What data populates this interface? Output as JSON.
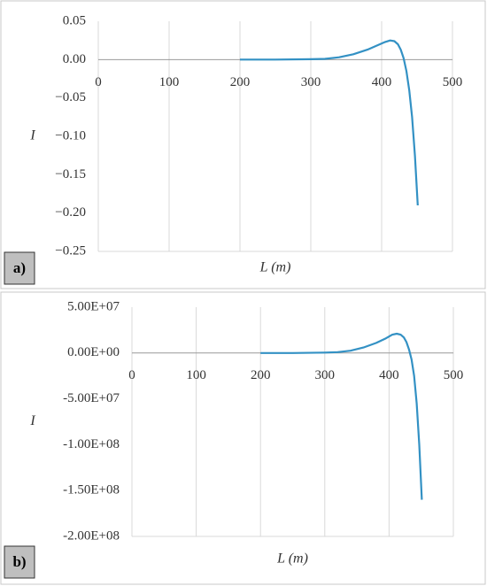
{
  "chart_data": [
    {
      "type": "line",
      "panel_label": "a)",
      "x_label": "L (m)",
      "y_label": "I",
      "color": "#3391c4",
      "grid": true,
      "x": [
        200,
        250,
        300,
        320,
        340,
        360,
        380,
        395,
        405,
        412,
        418,
        423,
        427,
        431,
        435,
        439,
        443,
        447,
        451
      ],
      "values": [
        0,
        0,
        0.0005,
        0.001,
        0.003,
        0.007,
        0.013,
        0.019,
        0.023,
        0.025,
        0.024,
        0.02,
        0.013,
        0.002,
        -0.015,
        -0.04,
        -0.075,
        -0.125,
        -0.19
      ],
      "xlim": [
        0,
        500
      ],
      "xticks": [
        0,
        100,
        200,
        300,
        400,
        500
      ],
      "ylim": [
        -0.25,
        0.05
      ],
      "yticks": [
        {
          "value": 0.05,
          "label": "0.05"
        },
        {
          "value": 0,
          "label": "0.00"
        },
        {
          "value": -0.05,
          "label": "−0.05"
        },
        {
          "value": -0.1,
          "label": "−0.10"
        },
        {
          "value": -0.15,
          "label": "−0.15"
        },
        {
          "value": -0.2,
          "label": "−0.20"
        },
        {
          "value": -0.25,
          "label": "−0.25"
        }
      ]
    },
    {
      "type": "line",
      "panel_label": "b)",
      "x_label": "L (m)",
      "y_label": "I",
      "color": "#3391c4",
      "grid": true,
      "x": [
        200,
        250,
        300,
        320,
        340,
        360,
        380,
        395,
        405,
        412,
        418,
        423,
        427,
        431,
        435,
        439,
        443,
        447,
        451
      ],
      "values": [
        0,
        0,
        500000,
        1000000,
        2500000,
        6000000,
        11000000,
        16000000,
        20000000,
        21000000,
        20000000,
        17000000,
        12000000,
        4000000,
        -7000000,
        -25000000,
        -55000000,
        -100000000,
        -160000000
      ],
      "xlim": [
        0,
        500
      ],
      "xticks": [
        0,
        100,
        200,
        300,
        400,
        500
      ],
      "ylim": [
        -200000000,
        50000000
      ],
      "yticks": [
        {
          "value": 50000000,
          "label": "5.00E+07"
        },
        {
          "value": 0,
          "label": "0.00E+00"
        },
        {
          "value": -50000000,
          "label": "-5.00E+07"
        },
        {
          "value": -100000000,
          "label": "-1.00E+08"
        },
        {
          "value": -150000000,
          "label": "-1.50E+08"
        },
        {
          "value": -200000000,
          "label": "-2.00E+08"
        }
      ]
    }
  ]
}
